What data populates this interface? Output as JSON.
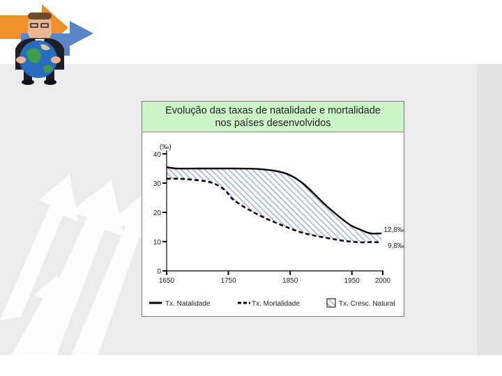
{
  "chart_data": {
    "type": "line",
    "title": "Evolução das taxas de natalidade e mortalidade",
    "subtitle": "nos países desenvolvidos",
    "ylabel": "(‰)",
    "xlabel": "",
    "xlim": [
      1650,
      2000
    ],
    "ylim": [
      0,
      40
    ],
    "xticks": [
      "1650",
      "1750",
      "1850",
      "1950",
      "2000"
    ],
    "yticks": [
      "0",
      "10",
      "20",
      "30",
      "40"
    ],
    "grid": false,
    "legend_position": "bottom",
    "series": [
      {
        "name": "Tx. Natalidade",
        "style": "solid",
        "color": "#000000",
        "x": [
          1650,
          1665,
          1700,
          1740,
          1760,
          1800,
          1840,
          1870,
          1910,
          1945,
          1965,
          1980,
          1998
        ],
        "y": [
          35.5,
          35.0,
          35.0,
          35.0,
          35.0,
          34.8,
          33.5,
          30.0,
          22.0,
          16.0,
          14.0,
          12.8,
          12.8
        ]
      },
      {
        "name": "Tx. Mortalidade",
        "style": "dashed",
        "color": "#000000",
        "x": [
          1650,
          1670,
          1700,
          1725,
          1745,
          1760,
          1800,
          1850,
          1880,
          1930,
          1960,
          1975,
          1998
        ],
        "y": [
          31.5,
          31.5,
          31.0,
          30.0,
          27.5,
          24.0,
          19.0,
          14.5,
          12.5,
          10.5,
          9.8,
          9.8,
          9.8
        ]
      }
    ],
    "fill_legend": "Tx. Cresc. Natural",
    "end_labels": [
      "12,8‰",
      "9,8‰"
    ]
  }
}
